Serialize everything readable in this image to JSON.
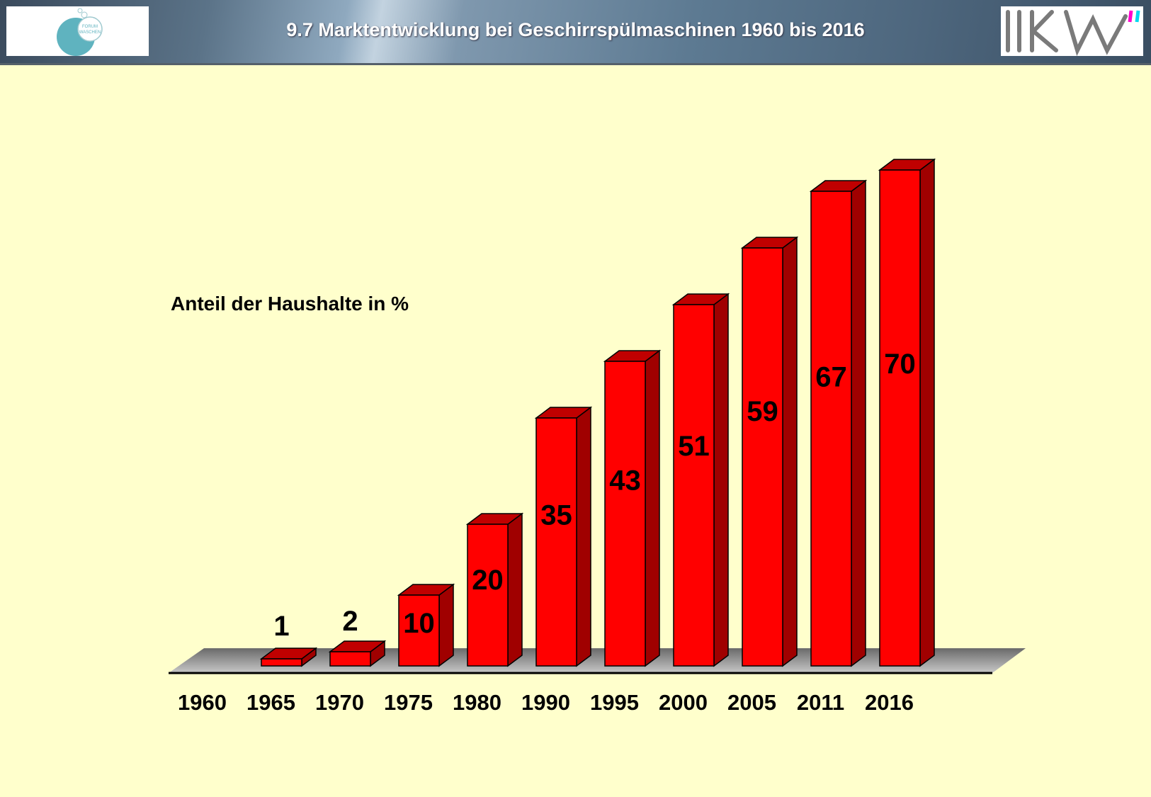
{
  "header": {
    "title": "9.7 Marktentwicklung bei Geschirrspülmaschinen 1960 bis 2016",
    "left_logo": "FORUM WASCHEN",
    "right_logo": "IKW"
  },
  "colors": {
    "background": "#FFFFCC",
    "bar_front": "#FF0000",
    "bar_side": "#A00000",
    "bar_top": "#C00000",
    "floor": "#A8A8A8"
  },
  "chart_data": {
    "type": "bar",
    "style": "3d",
    "ylabel": "Anteil der Haushalte in %",
    "categories": [
      "1960",
      "1965",
      "1970",
      "1975",
      "1980",
      "1990",
      "1995",
      "2000",
      "2005",
      "2011",
      "2016"
    ],
    "values": [
      0,
      1,
      2,
      10,
      20,
      35,
      43,
      51,
      59,
      67,
      70
    ],
    "data_labels": [
      "",
      "1",
      "2",
      "10",
      "20",
      "35",
      "43",
      "51",
      "59",
      "67",
      "70"
    ],
    "ylim": [
      0,
      70
    ],
    "grid": false,
    "legend": "none"
  }
}
